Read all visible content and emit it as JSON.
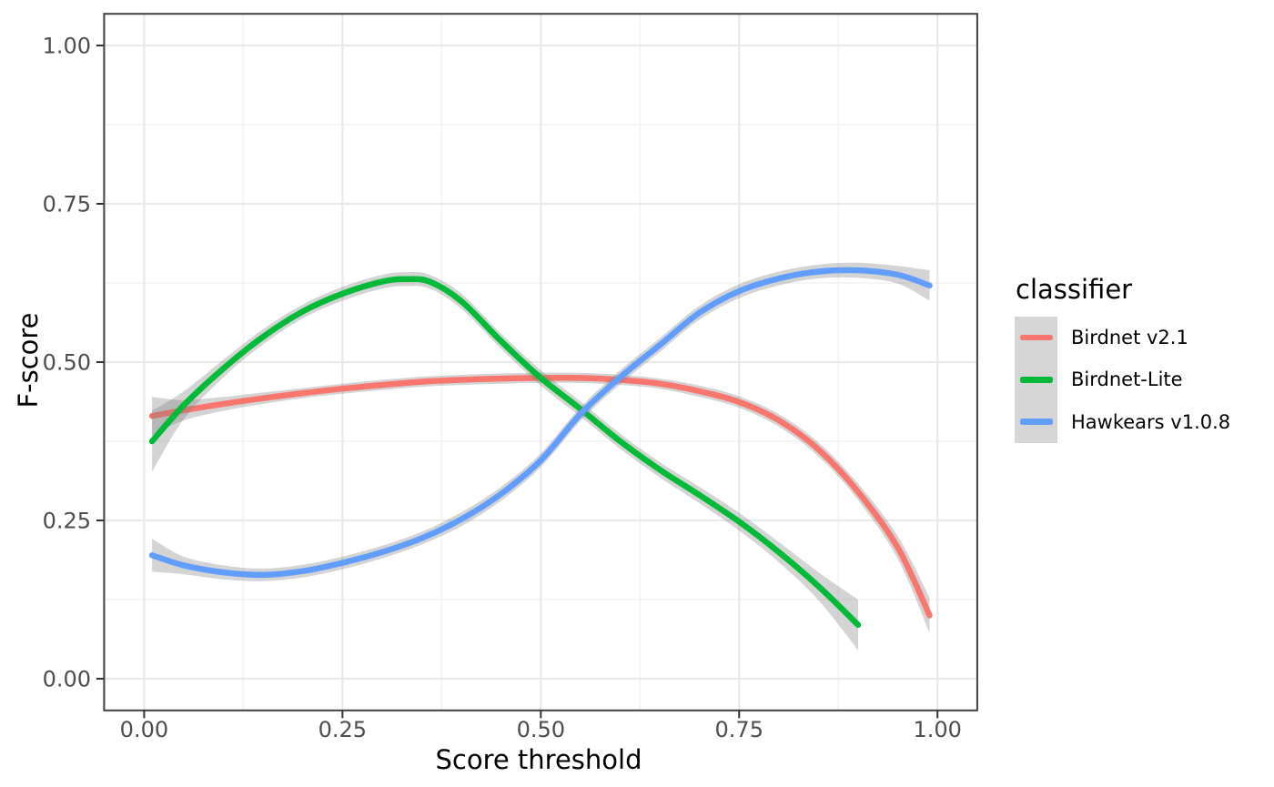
{
  "chart_data": {
    "type": "line",
    "title": "",
    "xlabel": "Score threshold",
    "ylabel": "F-score",
    "xlim": [
      -0.05,
      1.05
    ],
    "ylim": [
      -0.05,
      1.05
    ],
    "grid": "major and minor gridlines, light gray on white, dark panel border",
    "x_ticks": {
      "values": [
        0.0,
        0.25,
        0.5,
        0.75,
        1.0
      ],
      "labels": [
        "0.00",
        "0.25",
        "0.50",
        "0.75",
        "1.00"
      ]
    },
    "y_ticks": {
      "values": [
        0.0,
        0.25,
        0.5,
        0.75,
        1.0
      ],
      "labels": [
        "0.00",
        "0.25",
        "0.50",
        "0.75",
        "1.00"
      ]
    },
    "x_minor_ticks": [
      0.125,
      0.375,
      0.625,
      0.875
    ],
    "y_minor_ticks": [
      0.125,
      0.375,
      0.625,
      0.875
    ],
    "legend": {
      "title": "classifier",
      "position": "right",
      "key_fill": "#D5D5D5"
    },
    "band_color": "rgba(125,125,125,0.33)",
    "series": [
      {
        "name": "Birdnet v2.1",
        "color": "#F8766D",
        "x": [
          0.01,
          0.05,
          0.1,
          0.15,
          0.2,
          0.25,
          0.3,
          0.35,
          0.4,
          0.45,
          0.5,
          0.55,
          0.6,
          0.65,
          0.7,
          0.75,
          0.8,
          0.85,
          0.9,
          0.95,
          0.99
        ],
        "y": [
          0.415,
          0.424,
          0.434,
          0.443,
          0.451,
          0.458,
          0.464,
          0.469,
          0.472,
          0.474,
          0.475,
          0.475,
          0.472,
          0.466,
          0.454,
          0.437,
          0.408,
          0.362,
          0.295,
          0.207,
          0.1
        ],
        "band": [
          0.03,
          0.016,
          0.011,
          0.009,
          0.008,
          0.008,
          0.008,
          0.008,
          0.008,
          0.008,
          0.008,
          0.008,
          0.008,
          0.008,
          0.009,
          0.009,
          0.01,
          0.011,
          0.013,
          0.018,
          0.028
        ]
      },
      {
        "name": "Birdnet-Lite",
        "color": "#00BA38",
        "x": [
          0.01,
          0.05,
          0.1,
          0.15,
          0.2,
          0.25,
          0.3,
          0.33,
          0.36,
          0.4,
          0.45,
          0.5,
          0.55,
          0.6,
          0.65,
          0.7,
          0.75,
          0.8,
          0.85,
          0.9
        ],
        "y": [
          0.375,
          0.432,
          0.49,
          0.54,
          0.58,
          0.608,
          0.627,
          0.631,
          0.627,
          0.596,
          0.533,
          0.475,
          0.426,
          0.375,
          0.33,
          0.29,
          0.248,
          0.2,
          0.146,
          0.085
        ],
        "band": [
          0.048,
          0.022,
          0.014,
          0.012,
          0.011,
          0.011,
          0.011,
          0.011,
          0.011,
          0.012,
          0.012,
          0.012,
          0.012,
          0.012,
          0.012,
          0.013,
          0.014,
          0.016,
          0.022,
          0.04
        ]
      },
      {
        "name": "Hawkears v1.0.8",
        "color": "#619CFF",
        "x": [
          0.01,
          0.05,
          0.1,
          0.15,
          0.2,
          0.25,
          0.3,
          0.35,
          0.4,
          0.45,
          0.5,
          0.55,
          0.6,
          0.65,
          0.7,
          0.75,
          0.8,
          0.85,
          0.9,
          0.95,
          0.99
        ],
        "y": [
          0.195,
          0.179,
          0.168,
          0.164,
          0.17,
          0.183,
          0.2,
          0.222,
          0.252,
          0.292,
          0.345,
          0.418,
          0.476,
          0.527,
          0.578,
          0.612,
          0.632,
          0.643,
          0.645,
          0.638,
          0.621
        ],
        "band": [
          0.026,
          0.014,
          0.011,
          0.01,
          0.01,
          0.01,
          0.01,
          0.01,
          0.011,
          0.011,
          0.011,
          0.011,
          0.011,
          0.011,
          0.011,
          0.011,
          0.011,
          0.011,
          0.012,
          0.014,
          0.024
        ]
      }
    ],
    "style_colors": {
      "panel_border": "#404040",
      "major_grid": "#E9E9E9",
      "minor_grid": "#F2F2F2",
      "tick_mark": "#333333",
      "tick_label": "#4D4D4D"
    }
  }
}
